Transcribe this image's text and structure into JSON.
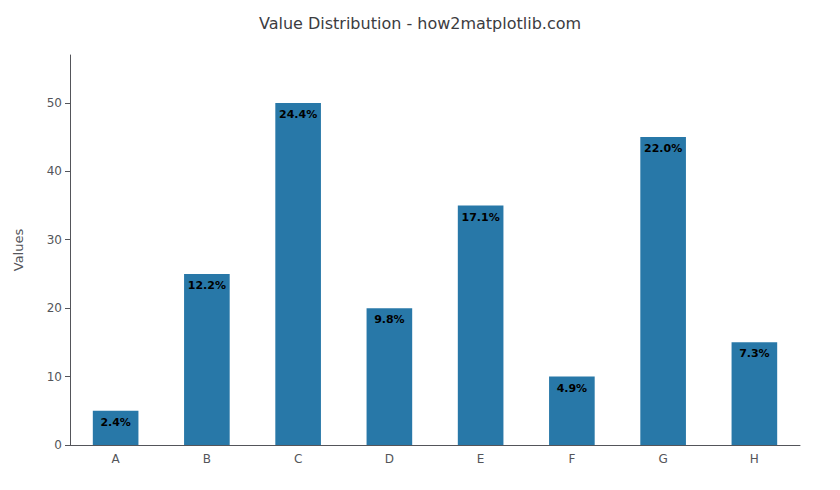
{
  "chart_data": {
    "type": "bar",
    "title": "Value Distribution - how2matplotlib.com",
    "ylabel": "Values",
    "categories": [
      "A",
      "B",
      "C",
      "D",
      "E",
      "F",
      "G",
      "H"
    ],
    "values": [
      5,
      25,
      50,
      20,
      35,
      10,
      45,
      15
    ],
    "annotations": [
      "2.4%",
      "12.2%",
      "24.4%",
      "9.8%",
      "17.1%",
      "4.9%",
      "22.0%",
      "7.3%"
    ],
    "color": "#2878a8",
    "ylim": [
      0,
      57
    ],
    "yticks": [
      0,
      10,
      20,
      30,
      40,
      50
    ],
    "grid": false
  }
}
